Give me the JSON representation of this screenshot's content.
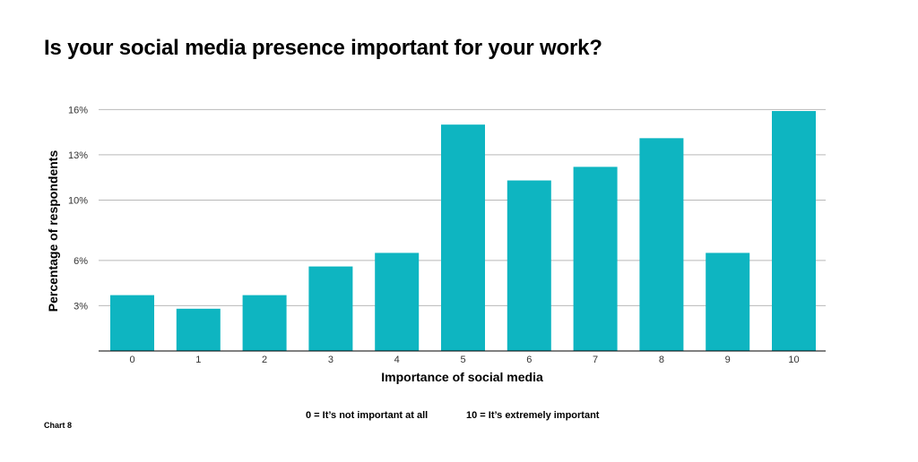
{
  "chart_data": {
    "type": "bar",
    "title": "Is your social media presence important for your work?",
    "xlabel": "Importance of social media",
    "ylabel": "Percentage of respondents",
    "categories": [
      "0",
      "1",
      "2",
      "3",
      "4",
      "5",
      "6",
      "7",
      "8",
      "9",
      "10"
    ],
    "values": [
      3.7,
      2.8,
      3.7,
      5.6,
      6.5,
      15.0,
      11.3,
      12.2,
      14.1,
      6.5,
      15.9
    ],
    "yticks": [
      3,
      6,
      10,
      13,
      16
    ],
    "ytick_labels": [
      "3%",
      "6%",
      "10%",
      "13%",
      "16%"
    ],
    "ylim": [
      0,
      15.9
    ],
    "grid": true,
    "bar_color": "#0eb5c1"
  },
  "legend": {
    "low": "0 = It’s not important at all",
    "high": "10 = It’s extremely important"
  },
  "footer": {
    "chart_number": "Chart 8"
  }
}
